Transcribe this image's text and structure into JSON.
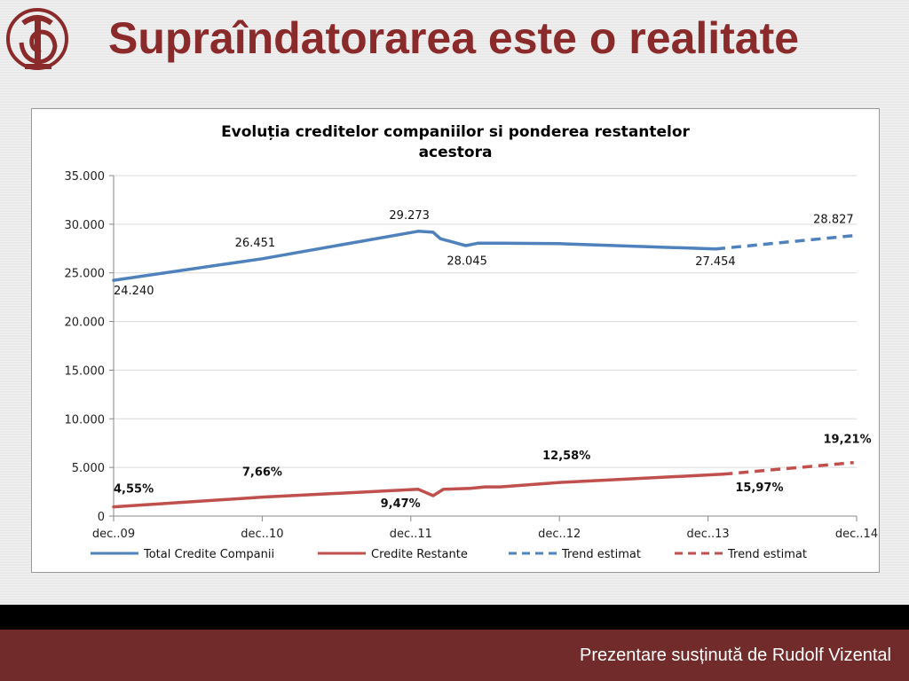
{
  "slide": {
    "title": "Supraîndatorarea este o realitate",
    "footer": "Prezentare susținută de Rudolf Vizental"
  },
  "colors": {
    "title": "#8b2a2a",
    "footer_bg": "#722b2b",
    "series_blue": "#4f81bd",
    "series_red": "#c0504d"
  },
  "chart_data": {
    "type": "line",
    "title_line1": "Evoluția creditelor companiilor si ponderea restantelor",
    "title_line2": "acestora",
    "xlabel": "",
    "ylabel": "",
    "x_ticks": [
      "dec..09",
      "dec..10",
      "dec..11",
      "dec..12",
      "dec..13",
      "dec..14"
    ],
    "y_ticks": [
      "0",
      "5.000",
      "10.000",
      "15.000",
      "20.000",
      "25.000",
      "30.000",
      "35.000"
    ],
    "ylim": [
      0,
      35000
    ],
    "grid": "horizontal",
    "legend_position": "bottom",
    "series": [
      {
        "name": "Total Credite Companii",
        "style": "solid",
        "color": "#4f81bd",
        "points": [
          [
            0,
            24240
          ],
          [
            1,
            26451
          ],
          [
            2.05,
            29273
          ],
          [
            2.15,
            29180
          ],
          [
            2.2,
            28500
          ],
          [
            2.37,
            27800
          ],
          [
            2.45,
            28045
          ],
          [
            2.6,
            28050
          ],
          [
            3.0,
            28000
          ],
          [
            4.05,
            27454
          ]
        ]
      },
      {
        "name": "Credite Restante",
        "style": "solid",
        "color": "#c0504d",
        "points": [
          [
            0,
            950
          ],
          [
            1,
            1950
          ],
          [
            2.05,
            2750
          ],
          [
            2.15,
            2100
          ],
          [
            2.22,
            2750
          ],
          [
            2.4,
            2850
          ],
          [
            2.5,
            3000
          ],
          [
            2.6,
            3000
          ],
          [
            3.0,
            3450
          ],
          [
            4.1,
            4300
          ]
        ]
      },
      {
        "name": "Trend estimat",
        "style": "dashed",
        "color": "#4f81bd",
        "points": [
          [
            4.05,
            27454
          ],
          [
            4.98,
            28827
          ]
        ]
      },
      {
        "name": "Trend estimat",
        "style": "dashed",
        "color": "#c0504d",
        "points": [
          [
            4.1,
            4300
          ],
          [
            4.98,
            5500
          ]
        ]
      }
    ],
    "annotations": [
      {
        "text": "24.240",
        "x": 0.0,
        "y": 24240,
        "bold": false,
        "anchor": "start",
        "dx": 0,
        "dy": 16
      },
      {
        "text": "26.451",
        "x": 1.0,
        "y": 26451,
        "bold": false,
        "anchor": "middle",
        "dx": -8,
        "dy": -14
      },
      {
        "text": "29.273",
        "x": 2.05,
        "y": 29273,
        "bold": false,
        "anchor": "middle",
        "dx": -10,
        "dy": -14
      },
      {
        "text": "28.045",
        "x": 2.45,
        "y": 28045,
        "bold": false,
        "anchor": "middle",
        "dx": -12,
        "dy": 24
      },
      {
        "text": "27.454",
        "x": 4.05,
        "y": 27454,
        "bold": false,
        "anchor": "middle",
        "dx": 0,
        "dy": 18
      },
      {
        "text": "28.827",
        "x": 4.98,
        "y": 28827,
        "bold": false,
        "anchor": "end",
        "dx": 0,
        "dy": -14
      },
      {
        "text": "4,55%",
        "x": 0.0,
        "y": 950,
        "bold": true,
        "anchor": "start",
        "dx": 0,
        "dy": -16
      },
      {
        "text": "7,66%",
        "x": 1.0,
        "y": 1950,
        "bold": true,
        "anchor": "middle",
        "dx": 0,
        "dy": -24
      },
      {
        "text": "9,47%",
        "x": 2.05,
        "y": 2750,
        "bold": true,
        "anchor": "middle",
        "dx": -20,
        "dy": 20
      },
      {
        "text": "12,58%",
        "x": 3.0,
        "y": 3450,
        "bold": true,
        "anchor": "middle",
        "dx": 8,
        "dy": -26
      },
      {
        "text": "15,97%",
        "x": 4.1,
        "y": 4300,
        "bold": true,
        "anchor": "start",
        "dx": 14,
        "dy": 19
      },
      {
        "text": "19,21%",
        "x": 4.98,
        "y": 5500,
        "bold": true,
        "anchor": "end",
        "dx": 20,
        "dy": -22
      }
    ]
  }
}
